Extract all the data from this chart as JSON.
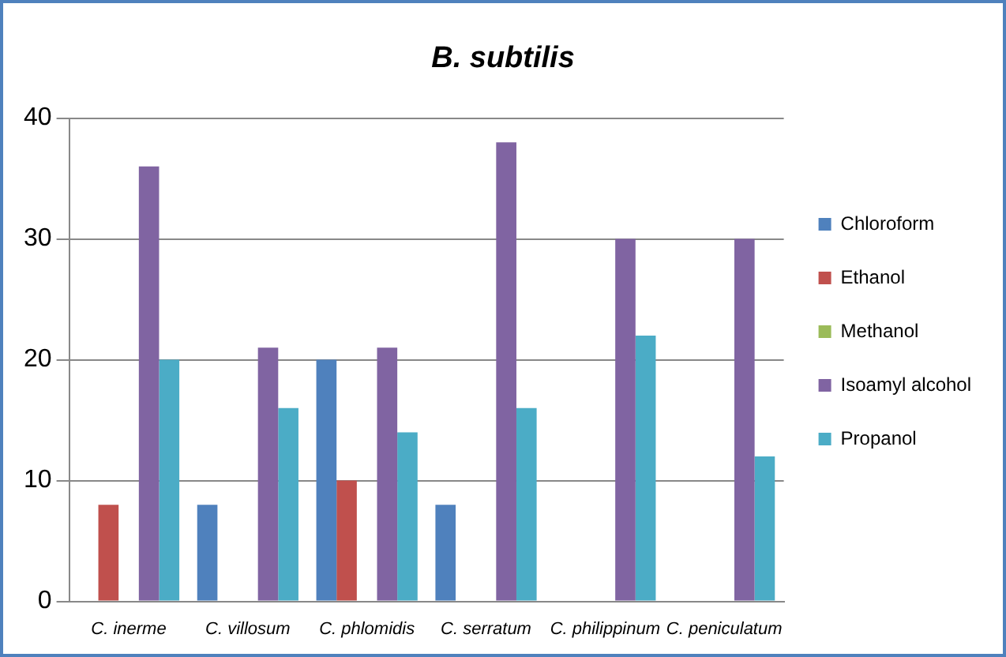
{
  "chart_data": {
    "type": "bar",
    "title": "B. subtilis",
    "categories": [
      "C. inerme",
      "C. villosum",
      "C. phlomidis",
      "C. serratum",
      "C. philippinum",
      "C. peniculatum"
    ],
    "series": [
      {
        "name": "Chloroform",
        "color": "#4f81bd",
        "values": [
          0,
          8,
          20,
          8,
          0,
          0
        ]
      },
      {
        "name": "Ethanol",
        "color": "#c0504d",
        "values": [
          8,
          0,
          10,
          0,
          0,
          0
        ]
      },
      {
        "name": "Methanol",
        "color": "#9bbb59",
        "values": [
          0,
          0,
          0,
          0,
          0,
          0
        ]
      },
      {
        "name": "Isoamyl alcohol",
        "color": "#8064a2",
        "values": [
          36,
          21,
          21,
          38,
          30,
          30
        ]
      },
      {
        "name": "Propanol",
        "color": "#4bacc6",
        "values": [
          20,
          16,
          14,
          16,
          22,
          12
        ]
      }
    ],
    "ylim": [
      0,
      40
    ],
    "yticks": [
      0,
      10,
      20,
      30,
      40
    ],
    "grid": "y",
    "legend": "right"
  }
}
